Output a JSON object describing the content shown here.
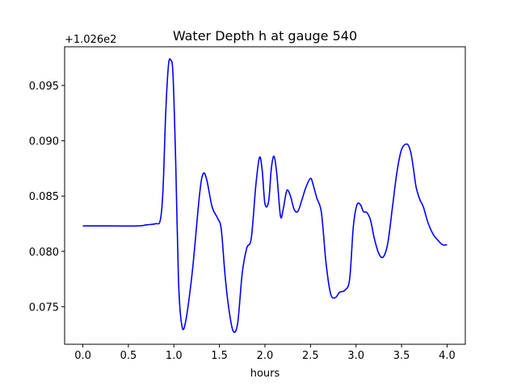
{
  "chart_data": {
    "type": "line",
    "title": "Water Depth h at gauge 540",
    "xlabel": "hours",
    "ylabel": "",
    "offset_label": "+1.026e2",
    "y_offset": 102.6,
    "xlim": [
      -0.2,
      4.2
    ],
    "ylim": [
      0.0716,
      0.0985
    ],
    "xticks": [
      0.0,
      0.5,
      1.0,
      1.5,
      2.0,
      2.5,
      3.0,
      3.5,
      4.0
    ],
    "xtick_labels": [
      "0.0",
      "0.5",
      "1.0",
      "1.5",
      "2.0",
      "2.5",
      "3.0",
      "3.5",
      "4.0"
    ],
    "yticks": [
      0.075,
      0.08,
      0.085,
      0.09,
      0.095
    ],
    "ytick_labels": [
      "0.075",
      "0.080",
      "0.085",
      "0.090",
      "0.095"
    ],
    "grid": false,
    "series": [
      {
        "color": "#0000ff",
        "x": [
          0.0,
          0.3,
          0.6,
          0.7,
          0.8,
          0.85,
          0.88,
          0.91,
          0.94,
          0.965,
          0.99,
          1.02,
          1.05,
          1.08,
          1.12,
          1.2,
          1.28,
          1.32,
          1.36,
          1.42,
          1.48,
          1.52,
          1.56,
          1.6,
          1.65,
          1.7,
          1.75,
          1.8,
          1.85,
          1.9,
          1.94,
          1.97,
          2.0,
          2.04,
          2.07,
          2.1,
          2.13,
          2.17,
          2.2,
          2.24,
          2.28,
          2.32,
          2.36,
          2.4,
          2.45,
          2.5,
          2.53,
          2.57,
          2.62,
          2.67,
          2.72,
          2.77,
          2.82,
          2.88,
          2.93,
          2.97,
          3.01,
          3.05,
          3.08,
          3.12,
          3.16,
          3.2,
          3.25,
          3.3,
          3.35,
          3.4,
          3.45,
          3.5,
          3.56,
          3.6,
          3.63,
          3.66,
          3.7,
          3.74,
          3.79,
          3.85,
          3.9,
          3.95,
          4.0
        ],
        "y": [
          0.0823,
          0.0823,
          0.0823,
          0.0824,
          0.0825,
          0.0828,
          0.0855,
          0.0925,
          0.0968,
          0.0973,
          0.096,
          0.088,
          0.0775,
          0.0737,
          0.0733,
          0.078,
          0.085,
          0.087,
          0.0865,
          0.084,
          0.083,
          0.082,
          0.078,
          0.075,
          0.0728,
          0.0735,
          0.078,
          0.0803,
          0.0812,
          0.086,
          0.0885,
          0.0873,
          0.0843,
          0.0845,
          0.0875,
          0.0886,
          0.087,
          0.0832,
          0.0838,
          0.0855,
          0.085,
          0.0838,
          0.0836,
          0.0845,
          0.0858,
          0.0866,
          0.086,
          0.0848,
          0.0835,
          0.079,
          0.0762,
          0.0758,
          0.0763,
          0.0765,
          0.0775,
          0.0822,
          0.0842,
          0.0842,
          0.0836,
          0.0835,
          0.0828,
          0.0812,
          0.0798,
          0.0795,
          0.0808,
          0.084,
          0.0872,
          0.0892,
          0.0897,
          0.089,
          0.0875,
          0.0858,
          0.0847,
          0.084,
          0.0826,
          0.0815,
          0.081,
          0.0806,
          0.0806
        ]
      }
    ]
  }
}
